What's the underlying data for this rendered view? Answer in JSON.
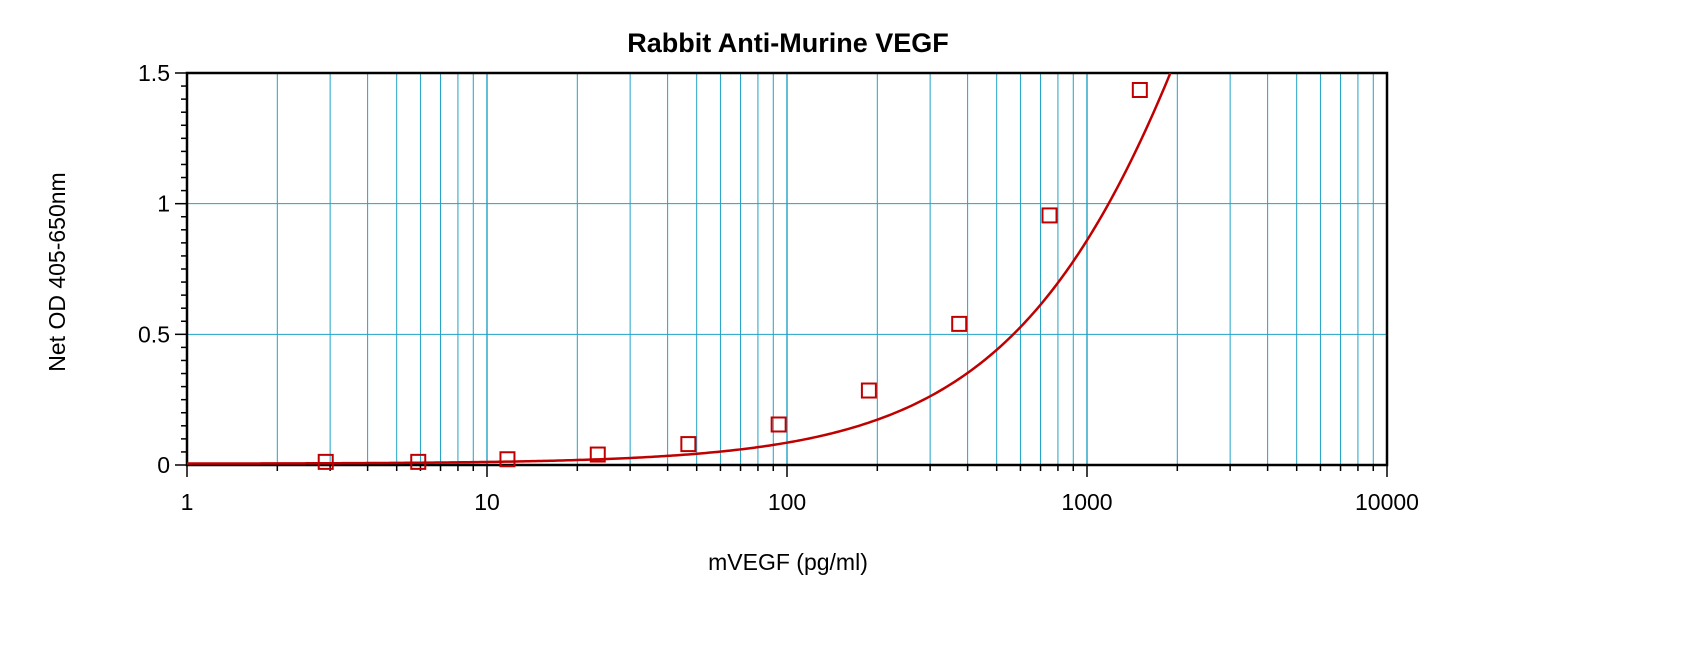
{
  "chart_data": {
    "type": "scatter",
    "title": "Rabbit Anti-Murine VEGF",
    "xlabel": "mVEGF (pg/ml)",
    "ylabel": "Net OD 405-650nm",
    "xscale": "log",
    "xlim": [
      1,
      10000
    ],
    "ylim": [
      0,
      1.5
    ],
    "x_ticks": [
      1,
      10,
      100,
      1000,
      10000
    ],
    "x_tick_labels": [
      "1",
      "10",
      "100",
      "1000",
      "10000"
    ],
    "y_ticks": [
      0,
      0.5,
      1,
      1.5
    ],
    "y_tick_labels": [
      "0",
      "0.5",
      "1",
      "1.5"
    ],
    "grid": true,
    "legend": "none",
    "series": [
      {
        "marker": "open-square",
        "x": [
          2.9,
          5.9,
          11.7,
          23.4,
          46.9,
          93.8,
          187.5,
          375,
          750,
          1500
        ],
        "y": [
          0.012,
          0.012,
          0.022,
          0.04,
          0.08,
          0.155,
          0.285,
          0.54,
          0.955,
          1.435
        ]
      }
    ],
    "fit_curve": {
      "model": "4PL",
      "a": 0.005,
      "d": 5.8,
      "c": 5000,
      "b": 1.09
    },
    "colors": {
      "series": "#c00000",
      "grid": "#1fa2c6",
      "frame": "#000000",
      "background": "#ffffff"
    }
  }
}
